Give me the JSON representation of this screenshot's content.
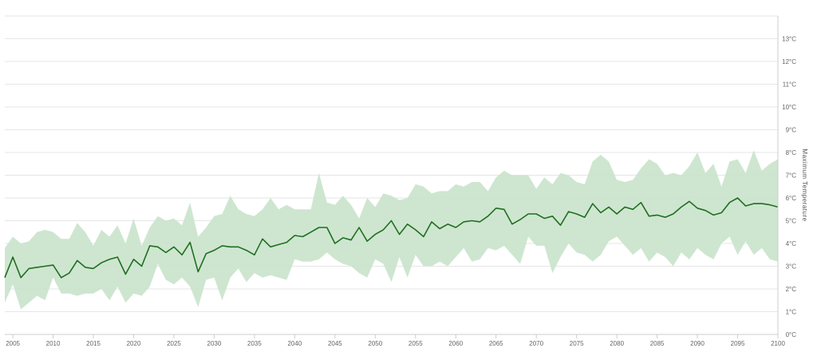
{
  "chart_data": {
    "type": "line",
    "title": "",
    "xlabel": "",
    "ylabel": "Maximum Temperature",
    "xlim": [
      2004,
      2100
    ],
    "ylim": [
      0,
      14
    ],
    "x_ticks": [
      2005,
      2010,
      2015,
      2020,
      2025,
      2030,
      2035,
      2040,
      2045,
      2050,
      2055,
      2060,
      2065,
      2070,
      2075,
      2080,
      2085,
      2090,
      2095,
      2100
    ],
    "y_ticks": [
      {
        "value": 0,
        "label": "0°C"
      },
      {
        "value": 1,
        "label": "1°C"
      },
      {
        "value": 2,
        "label": "2°C"
      },
      {
        "value": 3,
        "label": "3°C"
      },
      {
        "value": 4,
        "label": "4°C"
      },
      {
        "value": 5,
        "label": "5°C"
      },
      {
        "value": 6,
        "label": "6°C"
      },
      {
        "value": 7,
        "label": "7°C"
      },
      {
        "value": 8,
        "label": "8°C"
      },
      {
        "value": 9,
        "label": "9°C"
      },
      {
        "value": 10,
        "label": "10°C"
      },
      {
        "value": 11,
        "label": "11°C"
      },
      {
        "value": 12,
        "label": "12°C"
      },
      {
        "value": 13,
        "label": "13°C"
      }
    ],
    "grid": true,
    "colors": {
      "line": "#1f6f1f",
      "band": "#c9e3cb"
    },
    "x": [
      2004,
      2005,
      2006,
      2007,
      2008,
      2009,
      2010,
      2011,
      2012,
      2013,
      2014,
      2015,
      2016,
      2017,
      2018,
      2019,
      2020,
      2021,
      2022,
      2023,
      2024,
      2025,
      2026,
      2027,
      2028,
      2029,
      2030,
      2031,
      2032,
      2033,
      2034,
      2035,
      2036,
      2037,
      2038,
      2039,
      2040,
      2041,
      2042,
      2043,
      2044,
      2045,
      2046,
      2047,
      2048,
      2049,
      2050,
      2051,
      2052,
      2053,
      2054,
      2055,
      2056,
      2057,
      2058,
      2059,
      2060,
      2061,
      2062,
      2063,
      2064,
      2065,
      2066,
      2067,
      2068,
      2069,
      2070,
      2071,
      2072,
      2073,
      2074,
      2075,
      2076,
      2077,
      2078,
      2079,
      2080,
      2081,
      2082,
      2083,
      2084,
      2085,
      2086,
      2087,
      2088,
      2089,
      2090,
      2091,
      2092,
      2093,
      2094,
      2095,
      2096,
      2097,
      2098,
      2099,
      2100
    ],
    "series": [
      {
        "role": "mean",
        "values": [
          2.5,
          3.4,
          2.5,
          2.9,
          2.95,
          3.0,
          3.05,
          2.5,
          2.7,
          3.25,
          2.95,
          2.9,
          3.15,
          3.3,
          3.4,
          2.65,
          3.3,
          3.0,
          3.9,
          3.85,
          3.6,
          3.85,
          3.5,
          4.05,
          2.75,
          3.55,
          3.7,
          3.9,
          3.85,
          3.85,
          3.7,
          3.5,
          4.2,
          3.85,
          3.95,
          4.05,
          4.35,
          4.3,
          4.5,
          4.7,
          4.7,
          4.0,
          4.25,
          4.15,
          4.7,
          4.1,
          4.4,
          4.6,
          5.0,
          4.4,
          4.85,
          4.6,
          4.3,
          4.95,
          4.65,
          4.85,
          4.7,
          4.95,
          5.0,
          4.95,
          5.2,
          5.55,
          5.5,
          4.85,
          5.05,
          5.3,
          5.3,
          5.1,
          5.2,
          4.8,
          5.4,
          5.3,
          5.15,
          5.75,
          5.35,
          5.6,
          5.3,
          5.6,
          5.5,
          5.8,
          5.2,
          5.25,
          5.15,
          5.3,
          5.6,
          5.85,
          5.55,
          5.45,
          5.25,
          5.35,
          5.8,
          6.0,
          5.65,
          5.75,
          5.75,
          5.7,
          5.6
        ]
      },
      {
        "role": "upper",
        "values": [
          3.8,
          4.3,
          4.0,
          4.1,
          4.5,
          4.6,
          4.5,
          4.2,
          4.2,
          4.9,
          4.5,
          3.9,
          4.6,
          4.3,
          4.8,
          4.0,
          5.1,
          3.9,
          4.7,
          5.2,
          5.0,
          5.1,
          4.8,
          5.8,
          4.3,
          4.7,
          5.2,
          5.3,
          6.1,
          5.5,
          5.3,
          5.2,
          5.5,
          6.0,
          5.5,
          5.7,
          5.5,
          5.5,
          5.5,
          7.1,
          5.8,
          5.7,
          6.1,
          5.7,
          5.1,
          6.0,
          5.6,
          6.2,
          6.1,
          5.9,
          6.0,
          6.6,
          6.5,
          6.2,
          6.3,
          6.3,
          6.6,
          6.5,
          6.7,
          6.7,
          6.3,
          6.9,
          7.2,
          7.0,
          7.0,
          7.0,
          6.4,
          6.9,
          6.6,
          7.1,
          7.0,
          6.7,
          6.6,
          7.6,
          7.9,
          7.6,
          6.8,
          6.7,
          6.8,
          7.3,
          7.7,
          7.5,
          7.0,
          7.1,
          7.0,
          7.4,
          8.0,
          7.1,
          7.5,
          6.5,
          7.6,
          7.7,
          7.1,
          8.1,
          7.2,
          7.5,
          7.7
        ]
      },
      {
        "role": "lower",
        "values": [
          1.4,
          2.2,
          1.1,
          1.4,
          1.7,
          1.5,
          2.5,
          1.8,
          1.8,
          1.7,
          1.8,
          1.8,
          2.0,
          1.5,
          2.1,
          1.4,
          1.8,
          1.7,
          2.1,
          3.1,
          2.4,
          2.2,
          2.5,
          2.1,
          1.2,
          2.4,
          2.5,
          1.5,
          2.5,
          2.9,
          2.3,
          2.7,
          2.5,
          2.6,
          2.5,
          2.4,
          3.3,
          3.2,
          3.2,
          3.3,
          3.6,
          3.3,
          3.1,
          3.0,
          2.7,
          2.5,
          3.3,
          3.1,
          2.3,
          3.4,
          2.5,
          3.5,
          3.0,
          3.0,
          3.2,
          3.0,
          3.4,
          3.8,
          3.2,
          3.3,
          3.8,
          3.7,
          3.9,
          3.5,
          3.1,
          4.3,
          3.9,
          3.9,
          2.7,
          3.4,
          4.0,
          3.6,
          3.5,
          3.2,
          3.5,
          4.1,
          4.3,
          3.9,
          3.5,
          3.8,
          3.2,
          3.6,
          3.4,
          3.0,
          3.6,
          3.3,
          3.8,
          3.5,
          3.3,
          4.0,
          4.3,
          3.5,
          4.1,
          3.5,
          3.8,
          3.3,
          3.2
        ]
      }
    ]
  }
}
